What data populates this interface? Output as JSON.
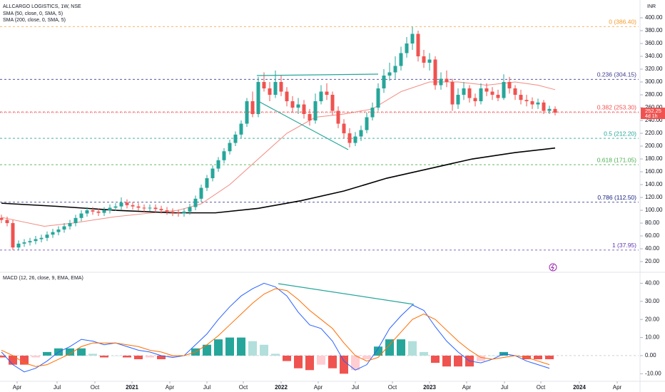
{
  "chart_data": [
    {
      "type": "candlestick",
      "title": "ALLCARGO LOGISTICS, 1W, NSE",
      "currency": "INR",
      "up_color": "#26a69a",
      "down_color": "#ef5350",
      "x": [
        0,
        2,
        4,
        6,
        8,
        10,
        12,
        14,
        16,
        18,
        20,
        22,
        24,
        26,
        28,
        30,
        32,
        34,
        36,
        38,
        40,
        42,
        44,
        46,
        48,
        50,
        52,
        54,
        56,
        58,
        60,
        62,
        64,
        66,
        68,
        70,
        72,
        74,
        76,
        78,
        80,
        82,
        84,
        86,
        88,
        90,
        92,
        94,
        96,
        98,
        100,
        102,
        104,
        106,
        108,
        110,
        112,
        114,
        116,
        118,
        120,
        122,
        124,
        126,
        128,
        130,
        132,
        134,
        136,
        138,
        140,
        142,
        144,
        146,
        148,
        150,
        152,
        154,
        156,
        158,
        160,
        162,
        164,
        166,
        168,
        170,
        172,
        174,
        176,
        178,
        180,
        182,
        184,
        186,
        188,
        190,
        192,
        194
      ],
      "open": [
        88,
        85,
        80,
        42,
        48,
        50,
        52,
        55,
        57,
        62,
        66,
        70,
        75,
        80,
        88,
        95,
        100,
        98,
        96,
        100,
        104,
        106,
        112,
        108,
        106,
        104,
        103,
        104,
        102,
        100,
        98,
        96,
        95,
        98,
        105,
        118,
        135,
        150,
        165,
        178,
        192,
        205,
        218,
        235,
        270,
        250,
        300,
        290,
        280,
        300,
        285,
        270,
        260,
        265,
        250,
        240,
        270,
        285,
        280,
        255,
        235,
        220,
        205,
        215,
        225,
        245,
        260,
        290,
        310,
        315,
        325,
        345,
        360,
        375,
        340,
        330,
        335,
        295,
        305,
        300,
        265,
        280,
        290,
        275,
        270,
        290,
        285,
        280,
        275,
        300,
        290,
        280,
        272,
        270,
        265,
        268,
        255,
        258
      ],
      "high": [
        93,
        90,
        85,
        53,
        55,
        57,
        60,
        62,
        67,
        71,
        75,
        80,
        85,
        93,
        100,
        105,
        105,
        103,
        105,
        109,
        111,
        120,
        117,
        113,
        111,
        109,
        109,
        109,
        107,
        105,
        103,
        101,
        103,
        110,
        123,
        140,
        155,
        170,
        183,
        197,
        210,
        223,
        240,
        275,
        285,
        308,
        315,
        300,
        318,
        310,
        292,
        278,
        275,
        272,
        258,
        282,
        295,
        298,
        285,
        262,
        242,
        228,
        222,
        232,
        252,
        268,
        298,
        320,
        330,
        340,
        355,
        370,
        386,
        380,
        350,
        345,
        340,
        315,
        318,
        305,
        290,
        300,
        295,
        282,
        298,
        298,
        292,
        288,
        312,
        308,
        295,
        288,
        280,
        276,
        274,
        272,
        263,
        262
      ],
      "low": [
        80,
        75,
        38,
        38,
        43,
        45,
        47,
        50,
        52,
        57,
        61,
        65,
        70,
        75,
        83,
        90,
        93,
        91,
        91,
        95,
        99,
        101,
        103,
        101,
        99,
        98,
        98,
        97,
        95,
        93,
        91,
        90,
        90,
        93,
        100,
        113,
        130,
        145,
        160,
        173,
        187,
        200,
        213,
        230,
        245,
        245,
        285,
        270,
        275,
        278,
        262,
        252,
        250,
        243,
        232,
        235,
        265,
        272,
        248,
        228,
        212,
        198,
        200,
        208,
        220,
        240,
        255,
        283,
        302,
        305,
        318,
        338,
        350,
        332,
        322,
        318,
        288,
        288,
        292,
        255,
        258,
        272,
        268,
        262,
        265,
        278,
        272,
        270,
        272,
        282,
        272,
        265,
        262,
        258,
        258,
        250,
        250,
        248
      ],
      "close": [
        85,
        80,
        42,
        48,
        50,
        52,
        55,
        57,
        62,
        66,
        70,
        75,
        80,
        88,
        95,
        100,
        98,
        96,
        100,
        104,
        106,
        112,
        108,
        106,
        104,
        103,
        104,
        102,
        100,
        98,
        96,
        95,
        98,
        105,
        118,
        135,
        150,
        165,
        178,
        192,
        205,
        218,
        235,
        270,
        250,
        300,
        290,
        280,
        300,
        285,
        270,
        260,
        265,
        250,
        240,
        270,
        285,
        280,
        255,
        235,
        220,
        205,
        215,
        225,
        245,
        260,
        290,
        310,
        315,
        325,
        345,
        360,
        375,
        340,
        330,
        335,
        295,
        305,
        300,
        265,
        280,
        290,
        275,
        270,
        290,
        285,
        280,
        275,
        300,
        290,
        280,
        272,
        270,
        265,
        268,
        255,
        258,
        252.25
      ],
      "last_price": 252.25,
      "bar_countdown": "4d 1h",
      "series": [
        {
          "name": "SMA (50, close, 0, SMA, 5)",
          "color": "#f28b82",
          "x": [
            0,
            15,
            25,
            40,
            55,
            62,
            70,
            80,
            90,
            100,
            110,
            120,
            130,
            140,
            150,
            160,
            170,
            180,
            188,
            194
          ],
          "values": [
            89,
            75,
            80,
            90,
            97,
            100,
            110,
            140,
            180,
            220,
            245,
            250,
            258,
            285,
            300,
            300,
            295,
            300,
            295,
            288
          ]
        },
        {
          "name": "SMA (200, close, 0, SMA, 5)",
          "color": "#000000",
          "x": [
            0,
            20,
            40,
            60,
            75,
            90,
            105,
            120,
            135,
            150,
            165,
            180,
            194
          ],
          "values": [
            111,
            106,
            100,
            96,
            96,
            103,
            115,
            130,
            150,
            165,
            180,
            190,
            197
          ]
        }
      ],
      "fib_levels": [
        {
          "value": 386.4,
          "label": "0 (386.40)",
          "color": "#f59b2d"
        },
        {
          "value": 304.15,
          "label": "0.236 (304.15)",
          "color": "#3f3d8f"
        },
        {
          "value": 253.3,
          "label": "0.382 (253.30)",
          "color": "#ef5350"
        },
        {
          "value": 212.2,
          "label": "0.5 (212.20)",
          "color": "#26a69a"
        },
        {
          "value": 171.05,
          "label": "0.618 (171.05)",
          "color": "#4caf50"
        },
        {
          "value": 112.5,
          "label": "0.786 (112.50)",
          "color": "#1a237e"
        },
        {
          "value": 37.95,
          "label": "1 (37.95)",
          "color": "#5e35b1"
        }
      ],
      "xlim": [
        -0.5,
        223.25
      ],
      "ylim": [
        5.6,
        427.8
      ],
      "yticks": [
        {
          "value": 400,
          "label": "400.00"
        },
        {
          "value": 380,
          "label": "380.00"
        },
        {
          "value": 360,
          "label": "360.00"
        },
        {
          "value": 340,
          "label": "340.00"
        },
        {
          "value": 320,
          "label": "320.00"
        },
        {
          "value": 300,
          "label": "300.00"
        },
        {
          "value": 280,
          "label": "280.00"
        },
        {
          "value": 260,
          "label": "260.00"
        },
        {
          "value": 240,
          "label": "240.00"
        },
        {
          "value": 220,
          "label": "220.00"
        },
        {
          "value": 200,
          "label": "200.00"
        },
        {
          "value": 180,
          "label": "180.00"
        },
        {
          "value": 160,
          "label": "160.00"
        },
        {
          "value": 140,
          "label": "140.00"
        },
        {
          "value": 120,
          "label": "120.00"
        },
        {
          "value": 100,
          "label": "100.00"
        },
        {
          "value": 80,
          "label": "80.00"
        },
        {
          "value": 60,
          "label": "60.00"
        },
        {
          "value": 40,
          "label": "40.00"
        },
        {
          "value": 20,
          "label": "20.00"
        }
      ]
    },
    {
      "type": "macd",
      "title": "MACD (12, 26, close, 9, EMA, EMA)",
      "x": [
        0,
        4,
        8,
        12,
        16,
        20,
        24,
        28,
        32,
        36,
        40,
        44,
        48,
        52,
        56,
        60,
        64,
        68,
        72,
        76,
        80,
        84,
        88,
        92,
        96,
        100,
        104,
        108,
        112,
        116,
        120,
        124,
        128,
        132,
        136,
        140,
        144,
        148,
        152,
        156,
        160,
        164,
        168,
        172,
        176,
        180,
        184,
        188,
        192
      ],
      "series": [
        {
          "name": "MACD",
          "color": "#2962ff",
          "values": [
            2,
            -5,
            -9,
            -7,
            -3,
            2,
            5,
            9,
            8,
            6,
            7,
            5,
            3,
            2,
            0,
            -1,
            0,
            6,
            12,
            20,
            27,
            33,
            37,
            40,
            38,
            33,
            24,
            17,
            15,
            8,
            -3,
            -8,
            -5,
            4,
            15,
            22,
            28,
            25,
            16,
            8,
            2,
            -3,
            -4,
            -2,
            1,
            0,
            -3,
            -5,
            -7
          ]
        },
        {
          "name": "Signal",
          "color": "#ff6d00",
          "values": [
            3,
            0,
            -4,
            -6,
            -5,
            -2,
            1,
            5,
            7,
            7,
            7,
            6,
            5,
            3,
            2,
            0,
            0,
            2,
            6,
            11,
            17,
            23,
            29,
            34,
            37,
            36,
            31,
            25,
            20,
            15,
            7,
            0,
            -3,
            -1,
            6,
            13,
            20,
            23,
            20,
            14,
            8,
            3,
            -1,
            -2,
            -1,
            0,
            -1,
            -3,
            -5
          ]
        }
      ],
      "histogram": [
        -1,
        -5,
        -5,
        -1,
        2,
        4,
        4,
        4,
        1,
        -1,
        0,
        -1,
        -2,
        -1,
        -2,
        -1,
        0,
        4,
        6,
        9,
        10,
        10,
        8,
        6,
        1,
        -3,
        -7,
        -8,
        -5,
        -7,
        -10,
        -8,
        -2,
        5,
        9,
        9,
        8,
        2,
        -4,
        -6,
        -6,
        -6,
        -3,
        0,
        2,
        0,
        -2,
        -2,
        -2
      ],
      "xlim": [
        -0.5,
        223.25
      ],
      "ylim": [
        -14.2,
        44.9
      ],
      "yticks": [
        {
          "value": 40,
          "label": "40.00"
        },
        {
          "value": 30,
          "label": "30.00"
        },
        {
          "value": 20,
          "label": "20.00"
        },
        {
          "value": 10,
          "label": "10.00"
        },
        {
          "value": 0,
          "label": "0.00"
        },
        {
          "value": -10,
          "label": "-10.00"
        }
      ],
      "xticks": [
        {
          "value": 5.5,
          "label": "Apr"
        },
        {
          "value": 19.5,
          "label": "Jul"
        },
        {
          "value": 32.75,
          "label": "Oct"
        },
        {
          "value": 45.75,
          "label": "2021"
        },
        {
          "value": 59,
          "label": "Apr"
        },
        {
          "value": 72,
          "label": "Jul"
        },
        {
          "value": 84.75,
          "label": "Oct"
        },
        {
          "value": 98,
          "label": "2022"
        },
        {
          "value": 111,
          "label": "Apr"
        },
        {
          "value": 124,
          "label": "Jul"
        },
        {
          "value": 137,
          "label": "Oct"
        },
        {
          "value": 150,
          "label": "2023"
        },
        {
          "value": 163,
          "label": "Apr"
        },
        {
          "value": 176.25,
          "label": "Jul"
        },
        {
          "value": 189,
          "label": "Oct"
        },
        {
          "value": 202.5,
          "label": "2024"
        },
        {
          "value": 215.75,
          "label": "Apr"
        }
      ]
    }
  ]
}
